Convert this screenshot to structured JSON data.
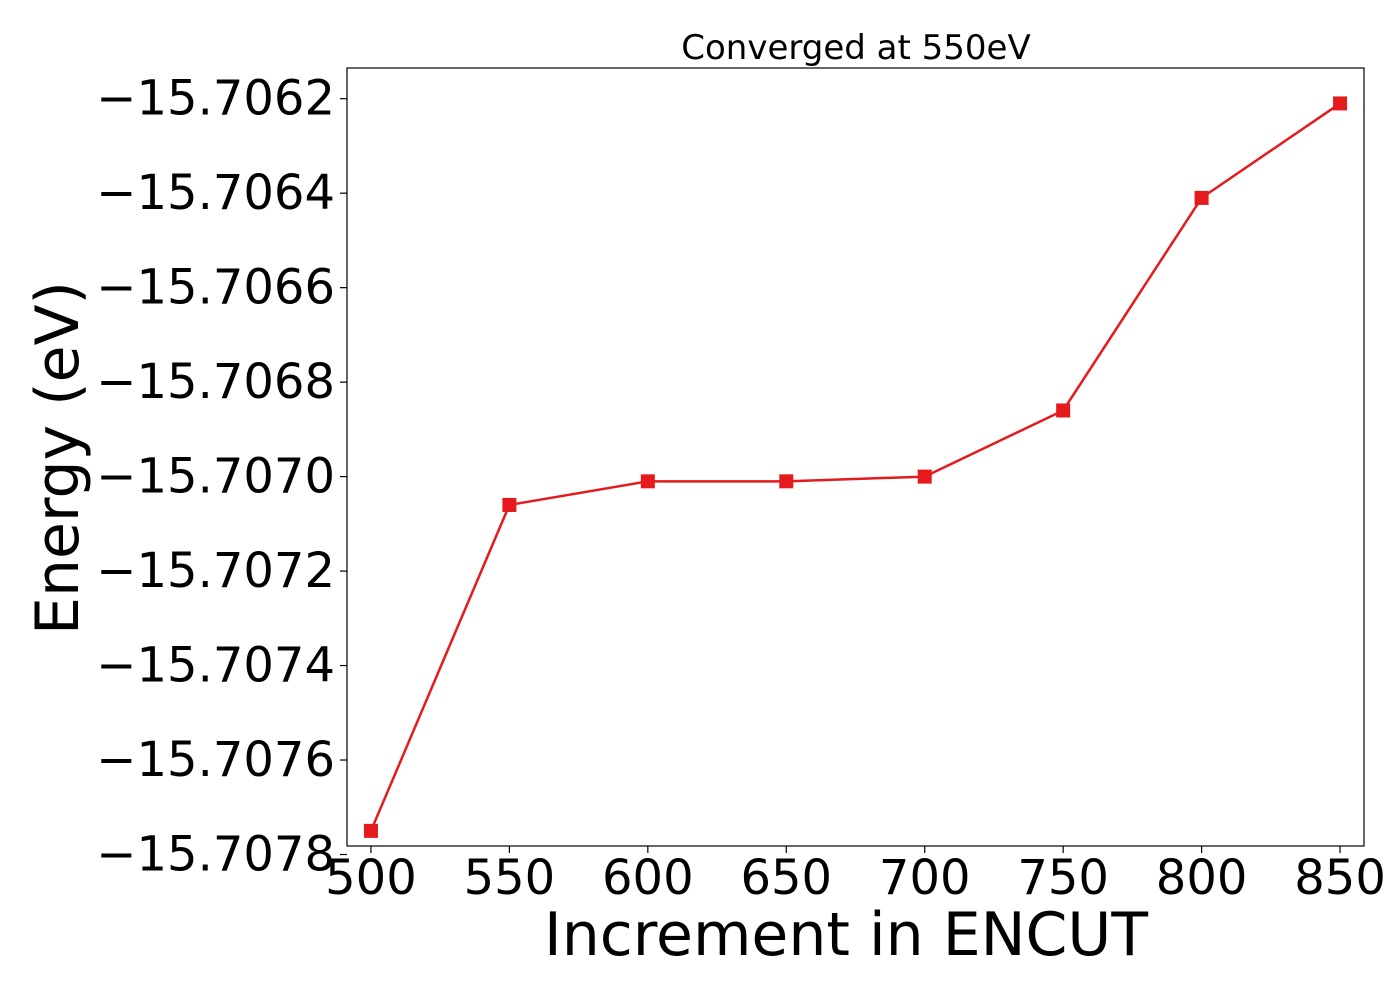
{
  "chart_data": {
    "type": "line",
    "title": "Converged at 550eV",
    "xlabel": "Increment in ENCUT",
    "ylabel": "Energy (eV)",
    "x": [
      500,
      550,
      600,
      650,
      700,
      750,
      800,
      850
    ],
    "series": [
      {
        "values": [
          -15.70775,
          -15.70706,
          -15.70701,
          -15.70701,
          -15.707,
          -15.70686,
          -15.70641,
          -15.70621
        ],
        "color": "#e41a1c",
        "marker": "square"
      }
    ],
    "xlim": [
      491.35,
      858.65
    ],
    "ylim": [
      -15.707782,
      -15.706135
    ],
    "xticks": [
      500,
      550,
      600,
      650,
      700,
      750,
      800,
      850
    ],
    "xtick_labels": [
      "500",
      "550",
      "600",
      "650",
      "700",
      "750",
      "800",
      "850"
    ],
    "yticks": [
      -15.7078,
      -15.7076,
      -15.7074,
      -15.7072,
      -15.707,
      -15.7068,
      -15.7066,
      -15.7064,
      -15.7062
    ],
    "ytick_labels": [
      "−15.7078",
      "−15.7076",
      "−15.7074",
      "−15.7072",
      "−15.7070",
      "−15.7068",
      "−15.7066",
      "−15.7064",
      "−15.7062"
    ],
    "grid": false,
    "legend": "none"
  }
}
